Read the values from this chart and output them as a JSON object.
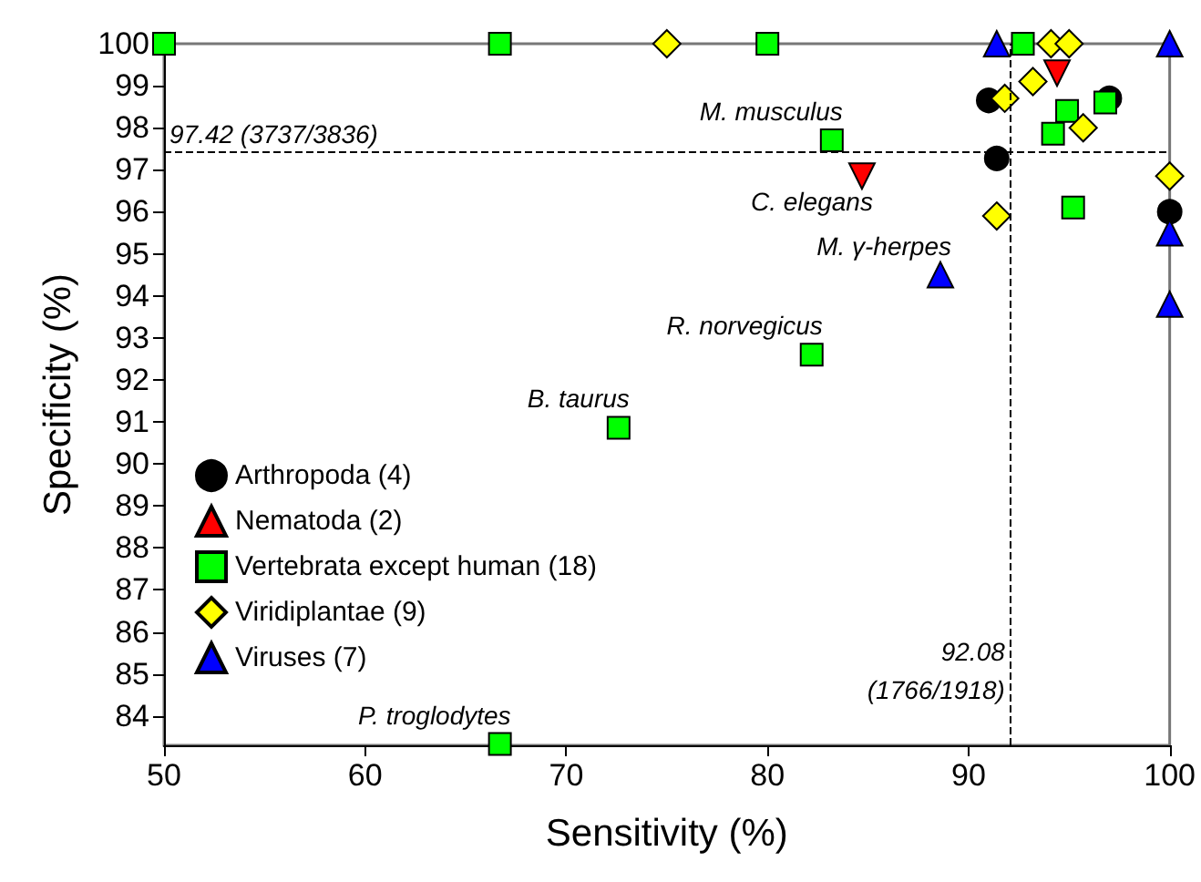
{
  "chart_data": {
    "type": "scatter",
    "xlabel": "Sensitivity (%)",
    "ylabel": "Specificity (%)",
    "xlim": [
      50,
      100
    ],
    "xticks": [
      50,
      60,
      70,
      80,
      90,
      100
    ],
    "ylim": [
      83.3,
      100
    ],
    "yticks": [
      84,
      85,
      86,
      87,
      88,
      89,
      90,
      91,
      92,
      93,
      94,
      95,
      96,
      97,
      98,
      99,
      100
    ],
    "grid": false,
    "legend": "bottom left",
    "series": [
      {
        "name": "Arthropoda (4)",
        "color": "#000000",
        "marker": "circle",
        "x": [
          91.0,
          97.0,
          91.4,
          100
        ],
        "values": [
          98.65,
          98.7,
          97.27,
          96.0
        ]
      },
      {
        "name": "Nematoda (2)",
        "color": "#ff0000",
        "marker": "triangle-down",
        "x": [
          94.4,
          84.7
        ],
        "values": [
          99.3,
          96.85
        ]
      },
      {
        "name": "Vertebrata except human (18)",
        "color": "#00ff00",
        "marker": "square",
        "x": [
          50,
          66.7,
          80,
          92.7,
          83.2,
          96.8,
          94.9,
          94.2,
          95.2,
          82.2,
          72.6,
          66.7
        ],
        "values": [
          100,
          100,
          100,
          100,
          97.7,
          98.6,
          98.4,
          97.86,
          96.1,
          92.6,
          90.86,
          83.33
        ]
      },
      {
        "name": "Viridiplantae (9)",
        "color": "#ffff00",
        "marker": "diamond",
        "x": [
          75,
          94.1,
          95.0,
          93.2,
          91.8,
          95.7,
          91.4,
          100
        ],
        "values": [
          100,
          100,
          100,
          99.1,
          98.7,
          98.0,
          95.9,
          96.85
        ]
      },
      {
        "name": "Viruses (7)",
        "color": "#0000ff",
        "marker": "triangle",
        "x": [
          91.4,
          100,
          100,
          100,
          88.6
        ],
        "values": [
          100,
          100,
          95.5,
          93.8,
          94.5
        ]
      }
    ],
    "ref_lines": [
      {
        "axis": "y",
        "value": 97.42,
        "label": "97.42 (3737/3836)",
        "line_style": "dashed"
      },
      {
        "axis": "x",
        "value": 92.08,
        "label": "92.08\n(1766/1918)",
        "line_style": "dashed"
      }
    ],
    "annotations": [
      {
        "text": "M. musculus",
        "x": 83.2,
        "y": 97.7
      },
      {
        "text": "C. elegans",
        "x": 84.7,
        "y": 96.85
      },
      {
        "text": "M. γ-herpes",
        "x": 88.6,
        "y": 94.5
      },
      {
        "text": "R. norvegicus",
        "x": 82.2,
        "y": 92.6
      },
      {
        "text": "B. taurus",
        "x": 72.6,
        "y": 90.86
      },
      {
        "text": "P. troglodytes",
        "x": 66.7,
        "y": 83.33
      }
    ]
  }
}
